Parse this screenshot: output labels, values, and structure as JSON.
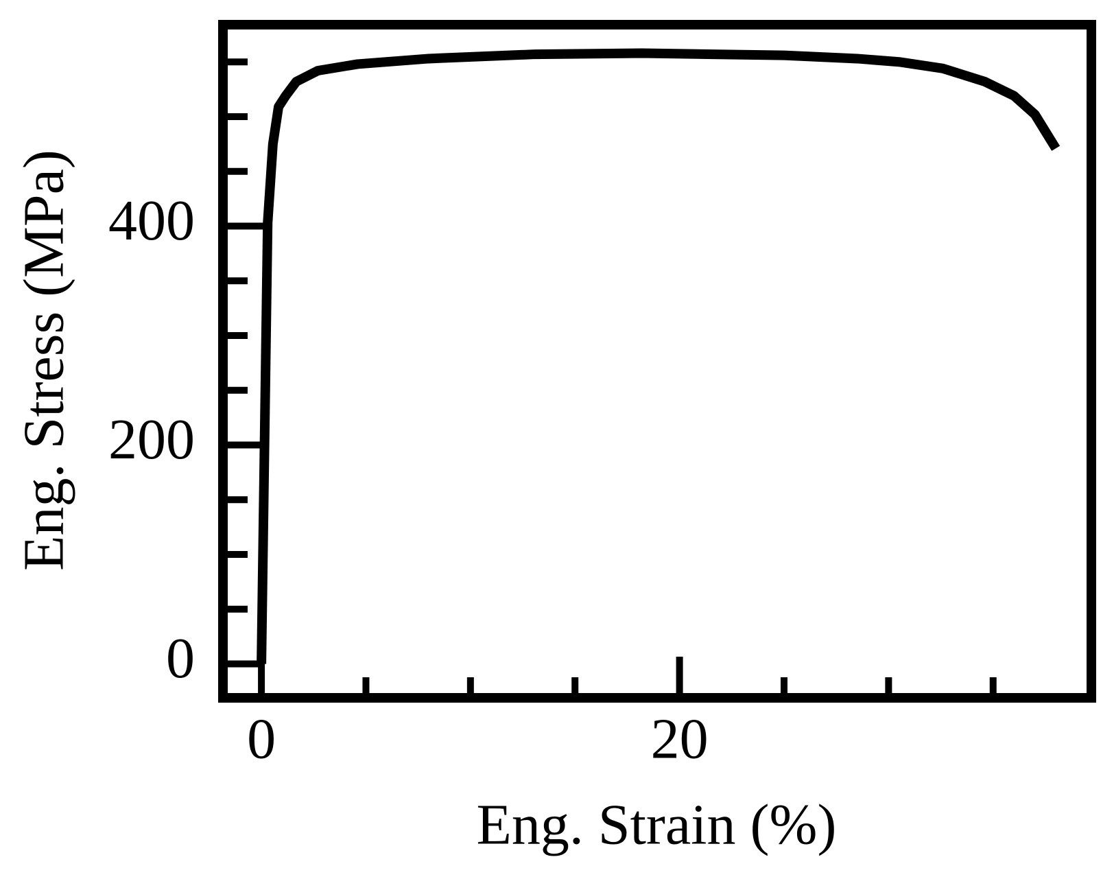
{
  "chart_data": {
    "type": "line",
    "x_label": "Eng. Strain (%)",
    "y_label": "Eng. Stress (MPa)",
    "xlim": [
      -1.84,
      39.7
    ],
    "ylim": [
      -31,
      584
    ],
    "xticks": [
      0,
      20
    ],
    "yticks": [
      0,
      200,
      400
    ],
    "xminor_ticks": [
      5,
      10,
      15,
      25,
      30,
      35
    ],
    "yminor_ticks": [
      50,
      100,
      150,
      250,
      300,
      350,
      450,
      500,
      550
    ],
    "series": [
      {
        "color": "#000000",
        "x": [
          0,
          0.3,
          0.55,
          0.82,
          1.16,
          1.67,
          2.7,
          4.6,
          8,
          13.1,
          18.2,
          21.6,
          25,
          28.5,
          30.5,
          32.6,
          34.6,
          36,
          37,
          38
        ],
        "values": [
          0,
          403,
          475,
          509,
          519,
          532,
          542,
          548,
          553,
          557,
          558,
          557,
          556,
          553,
          550,
          544,
          532,
          519,
          502,
          471
        ]
      }
    ]
  }
}
